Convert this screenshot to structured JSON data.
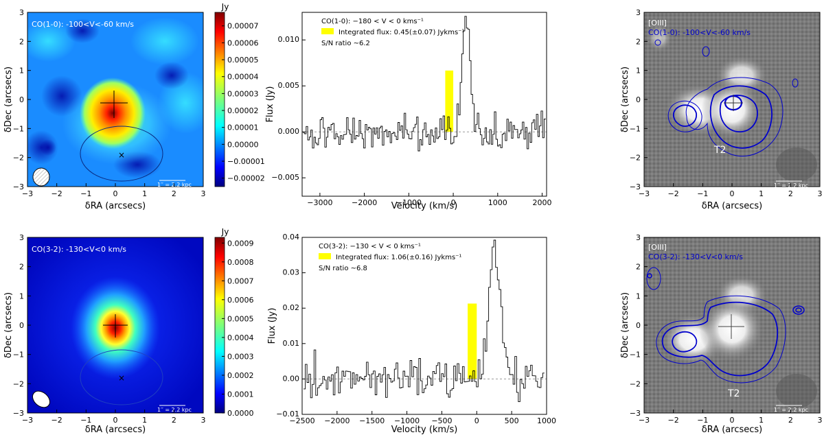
{
  "chart_data": [
    {
      "id": "map_co10",
      "type": "heatmap",
      "label": "CO(1-0):  -100<V<-60  km/s",
      "xlabel": "δRA (arcsecs)",
      "ylabel": "δDec (arcsecs)",
      "xlim": [
        -3,
        3
      ],
      "ylim": [
        -3,
        3
      ],
      "xticks": [
        "−3",
        "−2",
        "−1",
        "0",
        "1",
        "2",
        "3"
      ],
      "yticks": [
        "3",
        "2",
        "1",
        "0",
        "−1",
        "−2",
        "−3"
      ],
      "scalebar": "1′′ = 2.2 kpc",
      "colorbar": {
        "unit": "Jy",
        "range": [
          -2.5e-05,
          7.8e-05
        ],
        "ticks": [
          "0.00007",
          "0.00006",
          "0.00005",
          "0.00004",
          "0.00003",
          "0.00002",
          "0.00001",
          "0.00000",
          "−0.00001",
          "−0.00002"
        ],
        "tick_values": [
          7e-05,
          6e-05,
          5e-05,
          4e-05,
          3e-05,
          2e-05,
          1e-05,
          0.0,
          -1e-05,
          -2e-05
        ]
      },
      "peak": {
        "x": -0.1,
        "y": 0.0,
        "value": 7.5e-05
      },
      "ellipse_center": {
        "x": 0.25,
        "y": -1.75
      },
      "x_marker": {
        "x": 0.25,
        "y": -1.75
      }
    },
    {
      "id": "spec_co10",
      "type": "line",
      "ylabel": "Flux (Jy)",
      "xlabel": "Velocity (km/s)",
      "xlim": [
        -3400,
        2100
      ],
      "ylim": [
        -0.007,
        0.013
      ],
      "xticks": [
        "−3000",
        "−2000",
        "−1000",
        "0",
        "1000",
        "2000"
      ],
      "xtick_values": [
        -3000,
        -2000,
        -1000,
        0,
        1000,
        2000
      ],
      "yticks": [
        "0.010",
        "0.005",
        "0.000",
        "−0.005"
      ],
      "ytick_values": [
        0.01,
        0.005,
        0.0,
        -0.005
      ],
      "legend_title": "CO(1-0): −180 < V < 0  kms⁻¹",
      "legend_flux": "Integrated flux: 0.45(±0.07) Jykms⁻¹",
      "legend_sn": "S/N ratio ~6.2",
      "highlight_range": [
        -180,
        0
      ],
      "highlight_color": "#ffff00",
      "series": [
        {
          "name": "CO(1-0) spectrum",
          "channel_width": 35,
          "line_peak": 0.0122,
          "line_center": 280,
          "line_sigma": 95,
          "noise": 0.0012
        }
      ]
    },
    {
      "id": "oiii_co10",
      "type": "heatmap",
      "label_band": "[OIII]",
      "label_contour": "CO(1-0):  -100<V<-60  km/s",
      "annotation": "T2",
      "xlabel": "δRA (arcsecs)",
      "ylabel": "δDec (arcsecs)",
      "xticks": [
        "−3",
        "−2",
        "−1",
        "0",
        "1",
        "2",
        "3"
      ],
      "yticks": [
        "3",
        "2",
        "1",
        "0",
        "−1",
        "−2",
        "−3"
      ],
      "scalebar": "1′′ = 2.2 kpc",
      "contour_color": "#0000cc"
    },
    {
      "id": "map_co32",
      "type": "heatmap",
      "label": "CO(3-2): -130<V<0 km/s",
      "xlabel": "δRA (arcsecs)",
      "ylabel": "δDec (arcsecs)",
      "xlim": [
        -3,
        3
      ],
      "ylim": [
        -3,
        3
      ],
      "xticks": [
        "−3",
        "−2",
        "−1",
        "0",
        "1",
        "2",
        "3"
      ],
      "yticks": [
        "3",
        "2",
        "1",
        "0",
        "−1",
        "−2",
        "−3"
      ],
      "scalebar": "1′′ = 2.2 kpc",
      "colorbar": {
        "unit": "Jy",
        "range": [
          0,
          0.00093
        ],
        "ticks": [
          "0.0009",
          "0.0008",
          "0.0007",
          "0.0006",
          "0.0005",
          "0.0004",
          "0.0003",
          "0.0002",
          "0.0001",
          "0.0000"
        ],
        "tick_values": [
          0.0009,
          0.0008,
          0.0007,
          0.0006,
          0.0005,
          0.0004,
          0.0003,
          0.0002,
          0.0001,
          0.0
        ]
      },
      "peak": {
        "x": -0.05,
        "y": 0.05,
        "value": 0.0009
      },
      "ellipse_center": {
        "x": 0.25,
        "y": -1.75
      },
      "x_marker": {
        "x": 0.25,
        "y": -1.75
      }
    },
    {
      "id": "spec_co32",
      "type": "line",
      "ylabel": "Flux (Jy)",
      "xlabel": "Velocity (km/s)",
      "xlim": [
        -2500,
        1000
      ],
      "ylim": [
        -0.01,
        0.04
      ],
      "xticks": [
        "−2500",
        "−2000",
        "−1500",
        "−1000",
        "−500",
        "0",
        "500",
        "1000"
      ],
      "xtick_values": [
        -2500,
        -2000,
        -1500,
        -1000,
        -500,
        0,
        500,
        1000
      ],
      "yticks": [
        "0.04",
        "0.03",
        "0.02",
        "0.01",
        "0.00",
        "−0.01"
      ],
      "ytick_values": [
        0.04,
        0.03,
        0.02,
        0.01,
        0.0,
        -0.01
      ],
      "legend_title": "CO(3-2): −130 < V < 0  kms⁻¹",
      "legend_flux": "Integrated flux: 1.06(±0.16) Jykms⁻¹",
      "legend_sn": "S/N ratio ~6.8",
      "highlight_range": [
        -130,
        0
      ],
      "highlight_color": "#ffff00",
      "series": [
        {
          "name": "CO(3-2) spectrum",
          "channel_width": 25,
          "line_peak": 0.038,
          "line_center": 250,
          "line_sigma": 80,
          "noise": 0.004
        }
      ]
    },
    {
      "id": "oiii_co32",
      "type": "heatmap",
      "label_band": "[OIII]",
      "label_contour": "CO(3-2): -130<V<0 km/s",
      "annotation": "T2",
      "xlabel": "δRA (arcsecs)",
      "ylabel": "δDec (arcsecs)",
      "xticks": [
        "−3",
        "−2",
        "−1",
        "0",
        "1",
        "2",
        "3"
      ],
      "yticks": [
        "3",
        "2",
        "1",
        "0",
        "−1",
        "−2",
        "−3"
      ],
      "scalebar": "1′′ = 2.2 kpc",
      "contour_color": "#0000cc"
    }
  ]
}
